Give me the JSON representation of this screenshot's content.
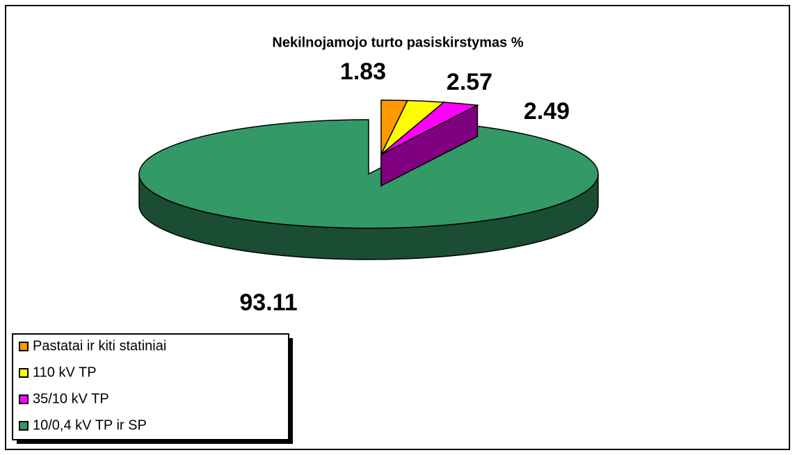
{
  "chart_data": {
    "type": "pie3d",
    "title": "Nekilnojamojo turto pasiskirstymas %",
    "categories": [
      "Pastatai ir kiti statiniai",
      "110 kV TP",
      "35/10 kV TP",
      "10/0,4 kV TP ir SP"
    ],
    "values": [
      1.83,
      2.57,
      2.49,
      93.11
    ],
    "colors": [
      "#ff9900",
      "#ffff00",
      "#ff00ff",
      "#339966"
    ],
    "legend": "bottom-left"
  }
}
